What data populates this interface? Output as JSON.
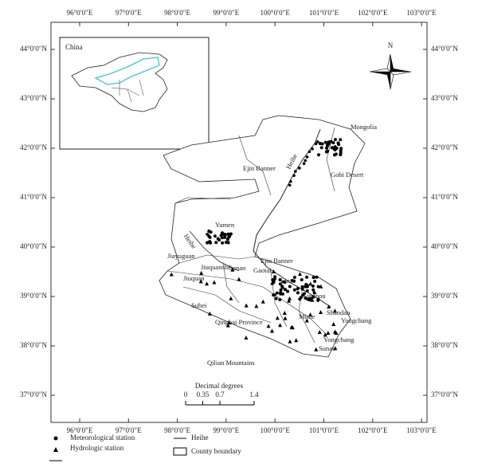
{
  "axes": {
    "longitude": [
      "96°0′0″E",
      "97°0′0″E",
      "98°0′0″E",
      "99°0′0″E",
      "100°0′0″E",
      "101°0′0″E",
      "102°0′0″E",
      "103°0′0″E"
    ],
    "latitude": [
      "44°0′0″N",
      "43°0′0″N",
      "42°0′0″N",
      "41°0′0″N",
      "40°0′0″N",
      "39°0′0″N",
      "38°0′0″N",
      "37°0′0″N"
    ]
  },
  "inset": {
    "label": "China"
  },
  "north": "N",
  "places": [
    "Mongolia",
    "Ejin Banner",
    "Heihe",
    "Gobi Desert",
    "Yumen",
    "Heihe",
    "Jiayuguan",
    "Jiuquanshi",
    "Sunan",
    "Ejin Banner",
    "Gaotai",
    "Linze",
    "Jiuquan",
    "Subei",
    "Ganzhou",
    "Qinghai Province",
    "Minle",
    "Shandan",
    "Yongchang",
    "Yongchang",
    "Sunan",
    "Qilian Mountains"
  ],
  "scale": {
    "title": "Decimal degrees",
    "ticks": [
      0,
      0.35,
      0.7,
      1.4
    ]
  },
  "legend": [
    "Meteorological station",
    "Hydrologic station",
    "Heihe",
    "County boundary"
  ]
}
